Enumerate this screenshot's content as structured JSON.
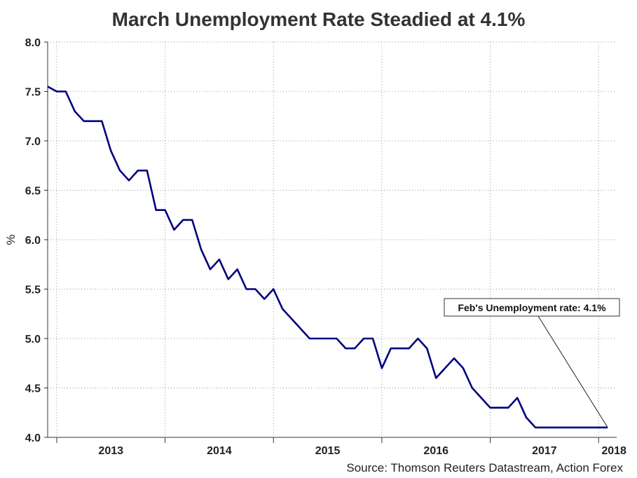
{
  "chart_data": {
    "type": "line",
    "title": "March Unemployment Rate Steadied at 4.1%",
    "ylabel": "%",
    "xlabel": "",
    "source": "Source: Thomson Reuters Datastream, Action Forex",
    "ylim": [
      4.0,
      8.0
    ],
    "yticks": [
      "4.0",
      "4.5",
      "5.0",
      "5.5",
      "6.0",
      "6.5",
      "7.0",
      "7.5",
      "8.0"
    ],
    "xlim": [
      "2012-12",
      "2018-03"
    ],
    "xticks": [
      "2013",
      "2014",
      "2015",
      "2016",
      "2017",
      "2018"
    ],
    "grid": true,
    "colors": {
      "line": "#000080",
      "grid": "#999999",
      "axis": "#333333"
    },
    "annotation": {
      "text": "Feb's Unemployment rate: 4.1%",
      "target": {
        "x": "2018-02",
        "y": 4.1
      }
    },
    "series": [
      {
        "x": [
          "2012-12",
          "2013-01",
          "2013-02",
          "2013-03",
          "2013-04",
          "2013-05",
          "2013-06",
          "2013-07",
          "2013-08",
          "2013-09",
          "2013-10",
          "2013-11",
          "2013-12",
          "2014-01",
          "2014-02",
          "2014-03",
          "2014-04",
          "2014-05",
          "2014-06",
          "2014-07",
          "2014-08",
          "2014-09",
          "2014-10",
          "2014-11",
          "2014-12",
          "2015-01",
          "2015-02",
          "2015-03",
          "2015-04",
          "2015-05",
          "2015-06",
          "2015-07",
          "2015-08",
          "2015-09",
          "2015-10",
          "2015-11",
          "2015-12",
          "2016-01",
          "2016-02",
          "2016-03",
          "2016-04",
          "2016-05",
          "2016-06",
          "2016-07",
          "2016-08",
          "2016-09",
          "2016-10",
          "2016-11",
          "2016-12",
          "2017-01",
          "2017-02",
          "2017-03",
          "2017-04",
          "2017-05",
          "2017-06",
          "2017-07",
          "2017-08",
          "2017-09",
          "2017-10",
          "2017-11",
          "2017-12",
          "2018-01",
          "2018-02"
        ],
        "values": [
          7.55,
          7.5,
          7.5,
          7.3,
          7.2,
          7.2,
          7.2,
          6.9,
          6.7,
          6.6,
          6.7,
          6.7,
          6.3,
          6.3,
          6.1,
          6.2,
          6.2,
          5.9,
          5.7,
          5.8,
          5.6,
          5.7,
          5.5,
          5.5,
          5.4,
          5.5,
          5.3,
          5.2,
          5.1,
          5.0,
          5.0,
          5.0,
          5.0,
          4.9,
          4.9,
          5.0,
          5.0,
          4.7,
          4.9,
          4.9,
          4.9,
          5.0,
          4.9,
          4.6,
          4.7,
          4.8,
          4.7,
          4.5,
          4.4,
          4.3,
          4.3,
          4.3,
          4.4,
          4.2,
          4.1,
          4.1,
          4.1,
          4.1,
          4.1,
          4.1,
          4.1,
          4.1,
          4.1
        ]
      }
    ]
  }
}
